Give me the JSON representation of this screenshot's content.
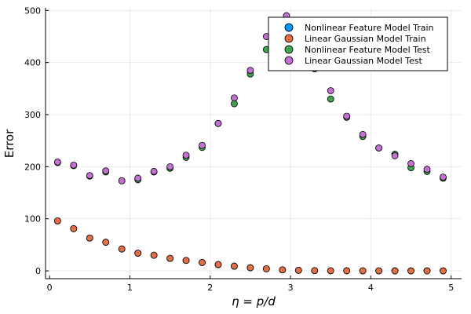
{
  "chart_data": {
    "type": "scatter",
    "title": "",
    "xlabel": "η = p/d",
    "ylabel": "Error",
    "xlim": [
      -0.05,
      5.13
    ],
    "ylim": [
      -15,
      505
    ],
    "xticks": [
      0,
      1,
      2,
      3,
      4,
      5
    ],
    "yticks": [
      0,
      100,
      200,
      300,
      400,
      500
    ],
    "grid": true,
    "legend_position": "top-right",
    "x": [
      0.1,
      0.3,
      0.5,
      0.7,
      0.9,
      1.1,
      1.3,
      1.5,
      1.7,
      1.9,
      2.1,
      2.3,
      2.5,
      2.7,
      2.9,
      2.95,
      3.1,
      3.3,
      3.35,
      3.5,
      3.7,
      3.9,
      4.1,
      4.3,
      4.5,
      4.7,
      4.9
    ],
    "series": [
      {
        "name": "Nonlinear Feature Model Train",
        "color": "#009AFA",
        "x": [
          0.1,
          0.3,
          0.5,
          0.7,
          0.9,
          1.1,
          1.3,
          1.5,
          1.7,
          1.9,
          2.1,
          2.3,
          2.5,
          2.7,
          2.9,
          3.1,
          3.3,
          3.5,
          3.7,
          3.9,
          4.1,
          4.3,
          4.5,
          4.7,
          4.9
        ],
        "values": [
          96,
          81,
          63,
          55,
          42,
          34,
          30,
          24,
          20,
          16,
          12,
          9,
          6,
          4,
          2,
          1,
          0.5,
          0.3,
          0.2,
          0.1,
          0.1,
          0,
          0,
          0,
          0
        ]
      },
      {
        "name": "Linear Gaussian Model Train",
        "color": "#E36F47",
        "x": [
          0.1,
          0.3,
          0.5,
          0.7,
          0.9,
          1.1,
          1.3,
          1.5,
          1.7,
          1.9,
          2.1,
          2.3,
          2.5,
          2.7,
          2.9,
          3.1,
          3.3,
          3.5,
          3.7,
          3.9,
          4.1,
          4.3,
          4.5,
          4.7,
          4.9
        ],
        "values": [
          96,
          81,
          63,
          55,
          42,
          34,
          30,
          24,
          20,
          16,
          12,
          9,
          6,
          4,
          2,
          1,
          0.5,
          0.3,
          0.2,
          0.1,
          0.1,
          0,
          0,
          0,
          0
        ]
      },
      {
        "name": "Nonlinear Feature Model Test",
        "color": "#3EA44E",
        "x": [
          0.1,
          0.3,
          0.5,
          0.7,
          0.9,
          1.1,
          1.3,
          1.5,
          1.7,
          1.9,
          2.1,
          2.3,
          2.5,
          2.7,
          2.9,
          3.1,
          3.3,
          3.5,
          3.7,
          3.9,
          4.1,
          4.3,
          4.5,
          4.7,
          4.9
        ],
        "values": [
          208,
          202,
          182,
          190,
          173,
          175,
          190,
          197,
          218,
          237,
          283,
          321,
          378,
          425,
          450,
          420,
          388,
          330,
          295,
          258,
          236,
          224,
          198,
          191,
          178
        ]
      },
      {
        "name": "Linear Gaussian Model Test",
        "color": "#C271D2",
        "x": [
          0.1,
          0.3,
          0.5,
          0.7,
          0.9,
          1.1,
          1.3,
          1.5,
          1.7,
          1.9,
          2.1,
          2.3,
          2.5,
          2.7,
          2.95,
          3.5,
          3.7,
          3.9,
          4.1,
          4.3,
          4.5,
          4.7,
          4.9
        ],
        "values": [
          209,
          203,
          183,
          192,
          173,
          178,
          191,
          200,
          222,
          241,
          283,
          332,
          385,
          450,
          490,
          346,
          297,
          262,
          236,
          221,
          206,
          195,
          180
        ]
      }
    ]
  }
}
